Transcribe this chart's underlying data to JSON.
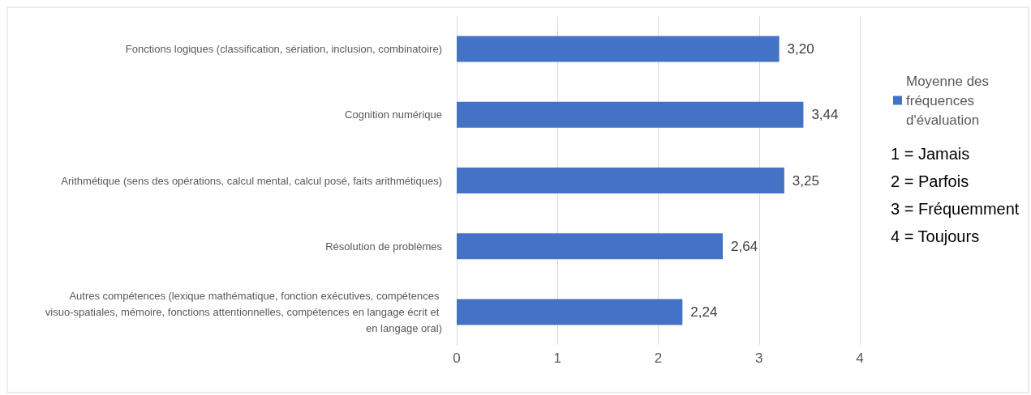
{
  "chart_data": {
    "type": "bar",
    "orientation": "horizontal",
    "categories": [
      "Fonctions logiques (classification, sériation, inclusion, combinatoire)",
      "Cognition numérique",
      "Arithmétique (sens des opérations, calcul mental, calcul posé, faits arithmétiques)",
      "Résolution de problèmes",
      "Autres compétences (lexique mathématique, fonction exécutives, compétences visuo-spatiales, mémoire, fonctions attentionnelles, compétences en langage écrit et en langage oral)"
    ],
    "series": [
      {
        "name": "Moyenne des fréquences d'évaluation",
        "color": "#4472c4",
        "values": [
          3.2,
          3.44,
          3.25,
          2.64,
          2.24
        ],
        "value_labels": [
          "3,20",
          "3,44",
          "3,25",
          "2,64",
          "2,24"
        ]
      }
    ],
    "xlim": [
      0,
      4
    ],
    "xticks": [
      0,
      1,
      2,
      3,
      4
    ],
    "grid": "x",
    "legend": "right",
    "annotations": [
      "1 = Jamais",
      "2 = Parfois",
      "3 = Fréquemment",
      "4 = Toujours"
    ]
  }
}
